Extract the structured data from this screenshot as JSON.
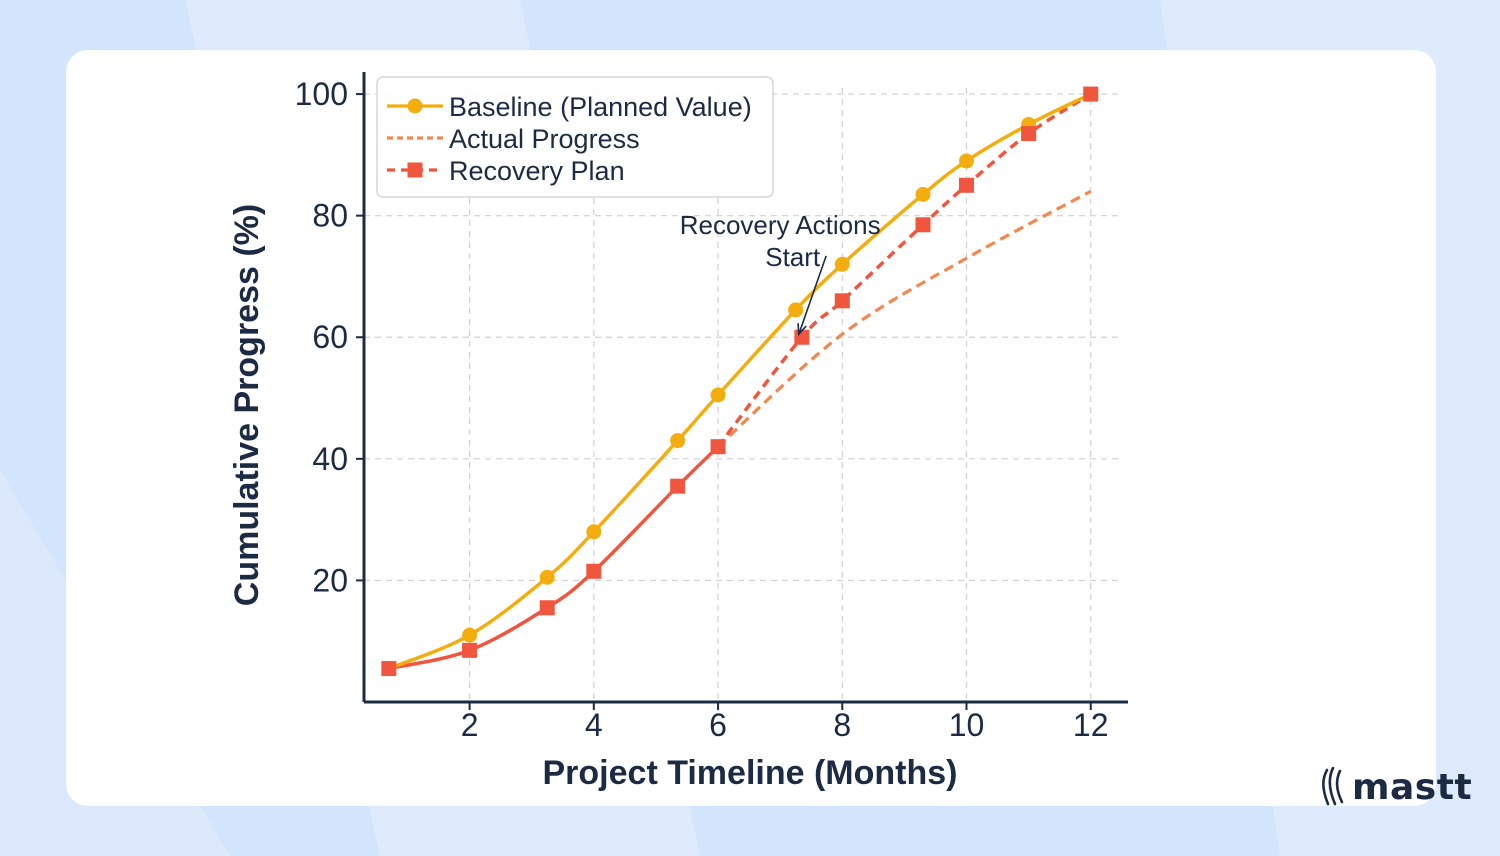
{
  "colors": {
    "background": "#d3e5fc",
    "card": "#ffffff",
    "baseline": "#f4ad0e",
    "actual": "#f3874f",
    "recovery": "#f0553d",
    "axis": "#1c2a44",
    "grid": "#d0d0d0"
  },
  "brand": {
    "logo_icon": "mastt-flame-icon",
    "name": "mastt"
  },
  "chart_data": {
    "type": "line",
    "title": "",
    "xlabel": "Project Timeline (Months)",
    "ylabel": "Cumulative Progress (%)",
    "xlim": [
      0.3,
      12.6
    ],
    "ylim": [
      0,
      101
    ],
    "xticks": [
      2,
      4,
      6,
      8,
      10,
      12
    ],
    "yticks": [
      20,
      40,
      60,
      80,
      100
    ],
    "grid": true,
    "legend_position": "top-left",
    "series": [
      {
        "name": "Baseline (Planned Value)",
        "style": "solid",
        "marker": "circle",
        "x": [
          0.7,
          2,
          3.25,
          4,
          5.35,
          6,
          7.25,
          8,
          9.3,
          10,
          11,
          12
        ],
        "y": [
          5.5,
          11,
          20.5,
          28,
          43,
          50.5,
          64.5,
          72,
          83.5,
          89,
          95,
          100
        ]
      },
      {
        "name": "Actual Progress",
        "style": "solid-then-dashed",
        "marker": "square",
        "solid_until_x": 6,
        "x": [
          0.7,
          2,
          3.25,
          4,
          5.35,
          6,
          8,
          10,
          12
        ],
        "y": [
          5.5,
          8.5,
          15.5,
          21.5,
          35.5,
          42,
          60.5,
          73,
          84
        ]
      },
      {
        "name": "Recovery Plan",
        "style": "dashed",
        "marker": "square",
        "x": [
          6,
          7.35,
          8,
          9.3,
          10,
          11,
          12
        ],
        "y": [
          42,
          60,
          66,
          78.5,
          85,
          93.5,
          100
        ]
      }
    ],
    "annotations": [
      {
        "text_lines": [
          "Recovery Actions",
          "Start"
        ],
        "point": [
          7.3,
          60.5
        ],
        "text_at": [
          7.0,
          77
        ]
      }
    ]
  }
}
